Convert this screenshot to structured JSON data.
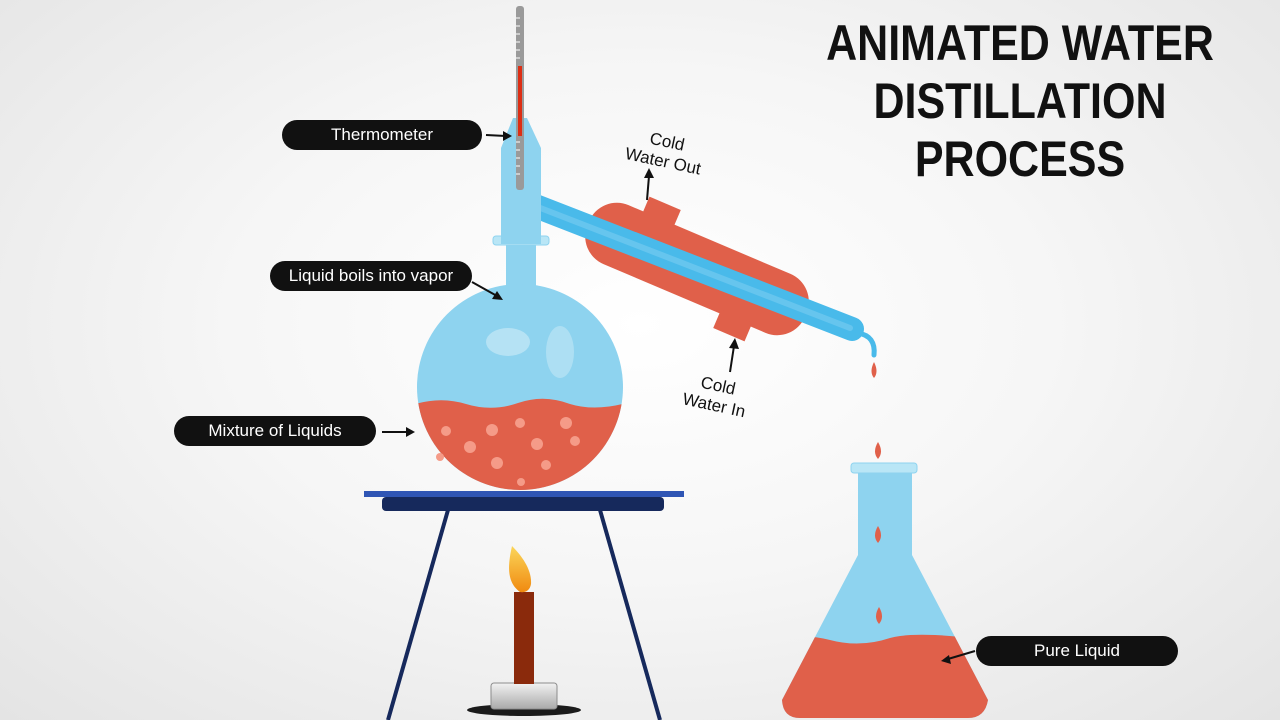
{
  "title": {
    "line1": "ANIMATED WATER",
    "line2": "DISTILLATION PROCESS"
  },
  "labels": {
    "thermometer": "Thermometer",
    "vapor": "Liquid boils into vapor",
    "mixture": "Mixture of Liquids",
    "pure": "Pure Liquid"
  },
  "condenser_notes": {
    "out_line1": "Cold",
    "out_line2": "Water Out",
    "in_line1": "Cold",
    "in_line2": "Water In"
  },
  "colors": {
    "glass": "#8ed3ef",
    "liquid": "#e0604a",
    "label_bg": "#111111",
    "stand": "#16295c",
    "flame": "#f4a31a"
  }
}
